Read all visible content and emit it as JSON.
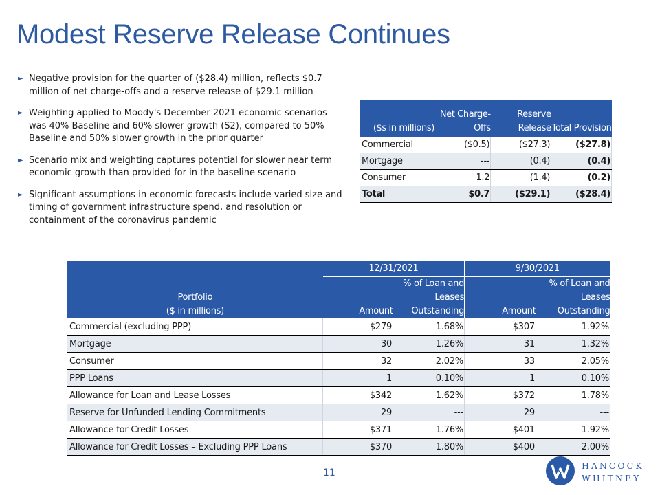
{
  "title": "Modest Reserve Release Continues",
  "bullets": [
    "Negative provision for the quarter of ($28.4) million, reflects $0.7 million of net charge-offs and a reserve  release of $29.1 million",
    "Weighting applied to Moody's December 2021 economic scenarios was 40% Baseline and 60% slower growth (S2), compared to 50% Baseline and 50% slower growth in the prior quarter",
    "Scenario mix and weighting captures potential for slower near term economic growth than provided for in the baseline scenario",
    "Significant assumptions in economic forecasts include varied size and timing of government infrastructure spend, and resolution or containment of the coronavirus  pandemic"
  ],
  "provision_table": {
    "headers": [
      "($s in millions)",
      "Net Charge-Offs",
      "Reserve Release",
      "Total Provision"
    ],
    "rows": [
      {
        "label": "Commercial",
        "net": "($0.5)",
        "release": "($27.3)",
        "total": "($27.8)"
      },
      {
        "label": "Mortgage",
        "net": "---",
        "release": "(0.4)",
        "total": "(0.4)"
      },
      {
        "label": "Consumer",
        "net": "1.2",
        "release": "(1.4)",
        "total": "(0.2)"
      },
      {
        "label": "Total",
        "net": "$0.7",
        "release": "($29.1)",
        "total": "($28.4)"
      }
    ]
  },
  "portfolio_table": {
    "portfolio_header_line1": "Portfolio",
    "portfolio_header_line2": "($ in millions)",
    "periods": [
      "12/31/2021",
      "9/30/2021"
    ],
    "amount_header": "Amount",
    "pct_header_line1": "% of Loan and",
    "pct_header_line2": "Leases",
    "pct_header_line3": "Outstanding",
    "rows": [
      {
        "label": "Commercial (excluding PPP)",
        "a1": "$279",
        "p1": "1.68%",
        "a2": "$307",
        "p2": "1.92%"
      },
      {
        "label": "Mortgage",
        "a1": "30",
        "p1": "1.26%",
        "a2": "31",
        "p2": "1.32%"
      },
      {
        "label": "Consumer",
        "a1": "32",
        "p1": "2.02%",
        "a2": "33",
        "p2": "2.05%"
      },
      {
        "label": "PPP Loans",
        "a1": "1",
        "p1": "0.10%",
        "a2": "1",
        "p2": "0.10%"
      },
      {
        "label": "Allowance for Loan and Lease Losses",
        "a1": "$342",
        "p1": "1.62%",
        "a2": "$372",
        "p2": "1.78%"
      },
      {
        "label": "Reserve for Unfunded Lending Commitments",
        "a1": "29",
        "p1": "---",
        "a2": "29",
        "p2": "---"
      },
      {
        "label": "Allowance for Credit Losses",
        "a1": "$371",
        "p1": "1.76%",
        "a2": "$401",
        "p2": "1.92%"
      },
      {
        "label": "Allowance for Credit Losses – Excluding PPP Loans",
        "a1": "$370",
        "p1": "1.80%",
        "a2": "$400",
        "p2": "2.00%"
      }
    ]
  },
  "page_number": "11",
  "logo": {
    "line1": "HANCOCK",
    "line2": "WHITNEY",
    "icon": "hancock-whitney-logo-icon"
  },
  "colors": {
    "accent": "#2d5aa0",
    "header_fill": "#2a59a7",
    "row_band": "#e6eaf1"
  }
}
